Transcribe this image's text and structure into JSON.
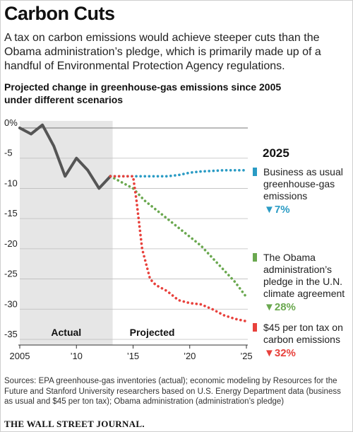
{
  "title": "Carbon Cuts",
  "subtitle": "A tax on carbon emissions would achieve steeper cuts than the Obama administration’s pledge, which is primarily made up of a handful of Environmental Protection Agency regulations.",
  "chart_heading": "Projected change in greenhouse-gas emissions since 2005 under different scenarios",
  "sources": "Sources: EPA greenhouse-gas inventories (actual); economic modeling by Resources for the Future and Stanford University researchers based on U.S. Energy Department data (business as usual and $45 per ton tax); Obama administration (administration’s pledge)",
  "publisher": "THE WALL STREET JOURNAL.",
  "chart_data": {
    "type": "line",
    "title": "Projected change in greenhouse-gas emissions since 2005 under different scenarios",
    "xlim": [
      2005,
      2025
    ],
    "ylim": [
      -35,
      0
    ],
    "grid": true,
    "x_ticks": [
      2005,
      2010,
      2015,
      2020,
      2025
    ],
    "x_tick_labels": [
      "2005",
      "’10",
      "’15",
      "’20",
      "’25"
    ],
    "y_ticks": [
      0,
      -5,
      -10,
      -15,
      -20,
      -25,
      -30,
      -35
    ],
    "y_tick_labels": [
      "0%",
      "-5",
      "-10",
      "-15",
      "-20",
      "-25",
      "-30",
      "-35"
    ],
    "regions": [
      {
        "label": "Actual",
        "from": 2005,
        "to": 2013.2,
        "color": "#e6e6e6"
      },
      {
        "label": "Projected",
        "from": 2013.2,
        "to": 2025,
        "color": "#ffffff"
      }
    ],
    "end_year_label": "2025",
    "series": [
      {
        "kind": "actual",
        "color": "#555555",
        "style": "solid",
        "x": [
          2005,
          2006,
          2007,
          2008,
          2009,
          2010,
          2011,
          2012,
          2013
        ],
        "y": [
          0,
          -1,
          0.5,
          -3,
          -8,
          -5,
          -7,
          -10,
          -8
        ]
      },
      {
        "name": "Business as usual greenhouse-gas emissions",
        "label_lines": [
          "Business as usual",
          "greenhouse-gas",
          "emissions"
        ],
        "end_value": "▼7%",
        "color": "#2a9bc4",
        "style": "dotted",
        "x": [
          2013,
          2014,
          2015,
          2016,
          2017,
          2018,
          2019,
          2020,
          2021,
          2022,
          2023,
          2024,
          2025
        ],
        "y": [
          -8,
          -8,
          -8,
          -8,
          -8,
          -8,
          -7.8,
          -7.4,
          -7.2,
          -7.1,
          -7.0,
          -7.0,
          -7.0
        ]
      },
      {
        "name": "The Obama administration’s pledge in the U.N. climate agreement",
        "label_lines": [
          "The Obama",
          "administration’s",
          "pledge in the U.N.",
          "climate agreement"
        ],
        "end_value": "▼28%",
        "color": "#6aa84f",
        "style": "dotted",
        "x": [
          2013,
          2014,
          2015,
          2016,
          2017,
          2018,
          2019,
          2020,
          2021,
          2022,
          2023,
          2024,
          2025
        ],
        "y": [
          -8,
          -9,
          -10,
          -12,
          -13.5,
          -15,
          -16.5,
          -18,
          -19.5,
          -21.5,
          -23.5,
          -25.5,
          -28
        ]
      },
      {
        "name": "$45 per ton tax on carbon emissions",
        "label_lines": [
          "$45 per ton tax on",
          "carbon emissions"
        ],
        "end_value": "▼32%",
        "color": "#e8413c",
        "style": "dotted",
        "x": [
          2013,
          2014,
          2015,
          2015.3,
          2015.8,
          2016.5,
          2017,
          2018,
          2019,
          2020,
          2021,
          2022,
          2023,
          2024,
          2025
        ],
        "y": [
          -8,
          -8,
          -8,
          -12,
          -20,
          -25,
          -26,
          -27,
          -28.5,
          -29,
          -29.2,
          -30,
          -31,
          -31.6,
          -32
        ]
      }
    ]
  }
}
